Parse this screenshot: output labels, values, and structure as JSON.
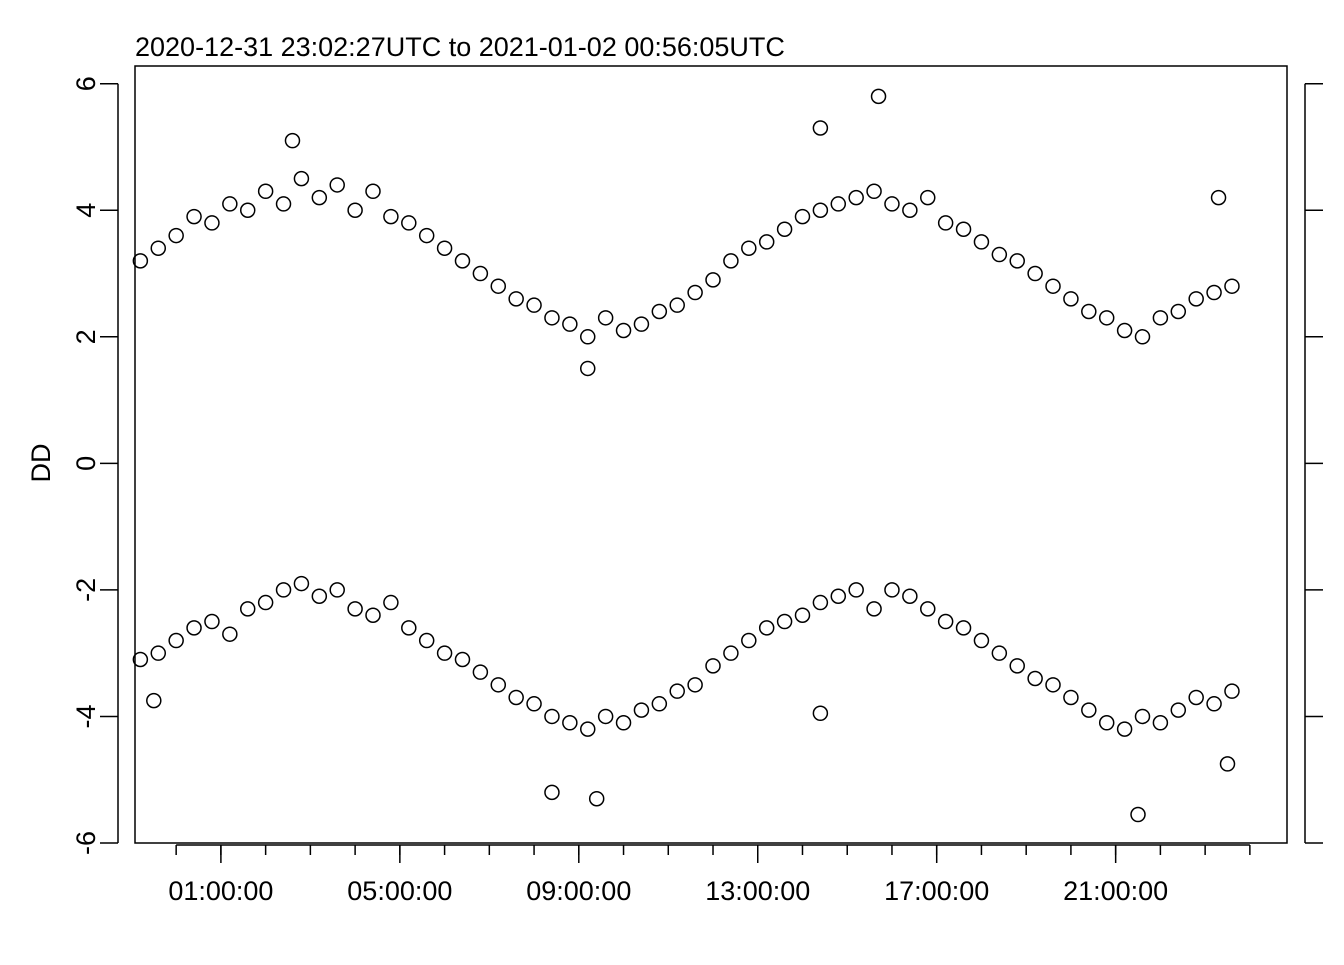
{
  "chart_data": {
    "type": "scatter",
    "title": "2020-12-31 23:02:27UTC to 2021-01-02 00:56:05UTC",
    "y_label": "DD",
    "xlim": [
      -0.92,
      24.83
    ],
    "ylim": [
      -6,
      6.28
    ],
    "xticks": [
      {
        "value": 1,
        "label": "01:00:00"
      },
      {
        "value": 5,
        "label": "05:00:00"
      },
      {
        "value": 9,
        "label": "09:00:00"
      },
      {
        "value": 13,
        "label": "13:00:00"
      },
      {
        "value": 17,
        "label": "17:00:00"
      },
      {
        "value": 21,
        "label": "21:00:00"
      }
    ],
    "xminorticks": [
      0,
      1,
      2,
      3,
      4,
      5,
      6,
      7,
      8,
      9,
      10,
      11,
      12,
      13,
      14,
      15,
      16,
      17,
      18,
      19,
      20,
      21,
      22,
      23,
      24
    ],
    "yticks": [
      -6,
      -4,
      -2,
      0,
      2,
      4,
      6
    ],
    "series": [
      {
        "color": "#000000",
        "x": [
          -0.8,
          -0.4,
          0,
          0.4,
          0.8,
          1.2,
          1.6,
          2.0,
          2.4,
          2.8,
          3.2,
          3.6,
          4.0,
          4.4,
          4.8,
          5.2,
          5.6,
          6.0,
          6.4,
          6.8,
          7.2,
          7.6,
          8.0,
          8.4,
          8.8,
          9.2,
          9.6,
          10.0,
          10.4,
          10.8,
          11.2,
          11.6,
          12.0,
          12.4,
          12.8,
          13.2,
          13.6,
          14.0,
          14.4,
          14.8,
          15.2,
          15.6,
          16.0,
          16.4,
          16.8,
          17.2,
          17.6,
          18.0,
          18.4,
          18.8,
          19.2,
          19.6,
          20.0,
          20.4,
          20.8,
          21.2,
          21.6,
          22.0,
          22.4,
          22.8,
          23.2,
          23.6,
          2.6,
          14.4,
          15.7,
          9.2,
          23.3
        ],
        "values": [
          3.2,
          3.4,
          3.6,
          3.9,
          3.8,
          4.1,
          4.0,
          4.3,
          4.1,
          4.5,
          4.2,
          4.4,
          4.0,
          4.3,
          3.9,
          3.8,
          3.6,
          3.4,
          3.2,
          3.0,
          2.8,
          2.6,
          2.5,
          2.3,
          2.2,
          2.0,
          2.3,
          2.1,
          2.2,
          2.4,
          2.5,
          2.7,
          2.9,
          3.2,
          3.4,
          3.5,
          3.7,
          3.9,
          4.0,
          4.1,
          4.2,
          4.3,
          4.1,
          4.0,
          4.2,
          3.8,
          3.7,
          3.5,
          3.3,
          3.2,
          3.0,
          2.8,
          2.6,
          2.4,
          2.3,
          2.1,
          2.0,
          2.3,
          2.4,
          2.6,
          2.7,
          2.8,
          5.1,
          5.3,
          5.8,
          1.5,
          4.2
        ]
      },
      {
        "color": "#000000",
        "x": [
          -0.8,
          -0.4,
          0,
          0.4,
          0.8,
          1.2,
          1.6,
          2.0,
          2.4,
          2.8,
          3.2,
          3.6,
          4.0,
          4.4,
          4.8,
          5.2,
          5.6,
          6.0,
          6.4,
          6.8,
          7.2,
          7.6,
          8.0,
          8.4,
          8.8,
          9.2,
          9.6,
          10.0,
          10.4,
          10.8,
          11.2,
          11.6,
          12.0,
          12.4,
          12.8,
          13.2,
          13.6,
          14.0,
          14.4,
          14.8,
          15.2,
          15.6,
          16.0,
          16.4,
          16.8,
          17.2,
          17.6,
          18.0,
          18.4,
          18.8,
          19.2,
          19.6,
          20.0,
          20.4,
          20.8,
          21.2,
          21.6,
          22.0,
          22.4,
          22.8,
          23.2,
          23.6,
          8.4,
          9.4,
          21.5,
          -0.5,
          14.4,
          23.5
        ],
        "values": [
          -3.1,
          -3.0,
          -2.8,
          -2.6,
          -2.5,
          -2.7,
          -2.3,
          -2.2,
          -2.0,
          -1.9,
          -2.1,
          -2.0,
          -2.3,
          -2.4,
          -2.2,
          -2.6,
          -2.8,
          -3.0,
          -3.1,
          -3.3,
          -3.5,
          -3.7,
          -3.8,
          -4.0,
          -4.1,
          -4.2,
          -4.0,
          -4.1,
          -3.9,
          -3.8,
          -3.6,
          -3.5,
          -3.2,
          -3.0,
          -2.8,
          -2.6,
          -2.5,
          -2.4,
          -2.2,
          -2.1,
          -2.0,
          -2.3,
          -2.0,
          -2.1,
          -2.3,
          -2.5,
          -2.6,
          -2.8,
          -3.0,
          -3.2,
          -3.4,
          -3.5,
          -3.7,
          -3.9,
          -4.1,
          -4.2,
          -4.0,
          -4.1,
          -3.9,
          -3.7,
          -3.8,
          -3.6,
          -5.2,
          -5.3,
          -5.55,
          -3.75,
          -3.95,
          -4.75
        ]
      }
    ]
  }
}
